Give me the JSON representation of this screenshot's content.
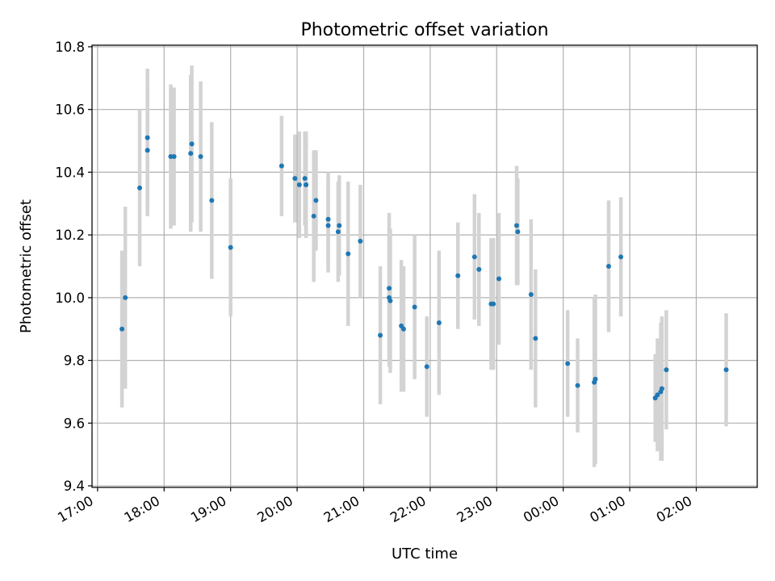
{
  "chart_data": {
    "type": "scatter",
    "title": "Photometric offset variation",
    "xlabel": "UTC time",
    "ylabel": "Photometric offset",
    "grid": true,
    "legend": "none",
    "xlim": [
      "16:55",
      "02:55"
    ],
    "ylim": [
      9.395,
      10.805
    ],
    "x_ticks": [
      "17:00",
      "18:00",
      "19:00",
      "20:00",
      "21:00",
      "22:00",
      "23:00",
      "00:00",
      "01:00",
      "02:00"
    ],
    "y_ticks": [
      "9.4",
      "9.6",
      "9.8",
      "10.0",
      "10.2",
      "10.4",
      "10.6",
      "10.8"
    ],
    "colors": {
      "point": "#1f77b4",
      "errorbar": "#d3d3d3",
      "grid": "#b0b0b0"
    },
    "series": [
      {
        "x": [
          "17:22",
          "17:25",
          "17:38",
          "17:45",
          "17:45",
          "18:06",
          "18:09",
          "18:24",
          "18:25",
          "18:33",
          "18:43",
          "19:00",
          "19:46",
          "19:58",
          "20:02",
          "20:07",
          "20:08",
          "20:08",
          "20:15",
          "20:17",
          "20:28",
          "20:28",
          "20:37",
          "20:38",
          "20:46",
          "20:57",
          "21:15",
          "21:23",
          "21:23",
          "21:24",
          "21:34",
          "21:36",
          "21:46",
          "21:57",
          "22:08",
          "22:25",
          "22:40",
          "22:44",
          "22:55",
          "22:57",
          "23:02",
          "23:18",
          "23:19",
          "23:31",
          "23:35",
          "00:04",
          "00:13",
          "00:28",
          "00:29",
          "00:41",
          "00:52",
          "01:23",
          "01:25",
          "01:28",
          "01:29",
          "01:33",
          "02:27"
        ],
        "y": [
          9.9,
          10.0,
          10.35,
          10.47,
          10.51,
          10.45,
          10.45,
          10.46,
          10.49,
          10.45,
          10.31,
          10.16,
          10.42,
          10.38,
          10.36,
          10.38,
          10.36,
          10.36,
          10.26,
          10.31,
          10.23,
          10.25,
          10.21,
          10.23,
          10.14,
          10.18,
          9.88,
          10.03,
          10.0,
          9.99,
          9.91,
          9.9,
          9.97,
          9.78,
          9.92,
          10.07,
          10.13,
          10.09,
          9.98,
          9.98,
          10.06,
          10.23,
          10.21,
          10.01,
          9.87,
          9.79,
          9.72,
          9.73,
          9.74,
          10.1,
          10.13,
          9.68,
          9.69,
          9.7,
          9.71,
          9.77,
          9.77
        ],
        "yerr": [
          0.25,
          0.29,
          0.25,
          0.21,
          0.22,
          0.23,
          0.22,
          0.25,
          0.25,
          0.24,
          0.25,
          0.22,
          0.16,
          0.14,
          0.17,
          0.15,
          0.17,
          0.16,
          0.21,
          0.16,
          0.15,
          0.15,
          0.16,
          0.16,
          0.23,
          0.18,
          0.22,
          0.24,
          0.22,
          0.23,
          0.21,
          0.2,
          0.23,
          0.16,
          0.23,
          0.17,
          0.2,
          0.18,
          0.21,
          0.21,
          0.21,
          0.19,
          0.17,
          0.24,
          0.22,
          0.17,
          0.15,
          0.27,
          0.27,
          0.21,
          0.19,
          0.14,
          0.18,
          0.22,
          0.23,
          0.19,
          0.18
        ]
      }
    ]
  }
}
